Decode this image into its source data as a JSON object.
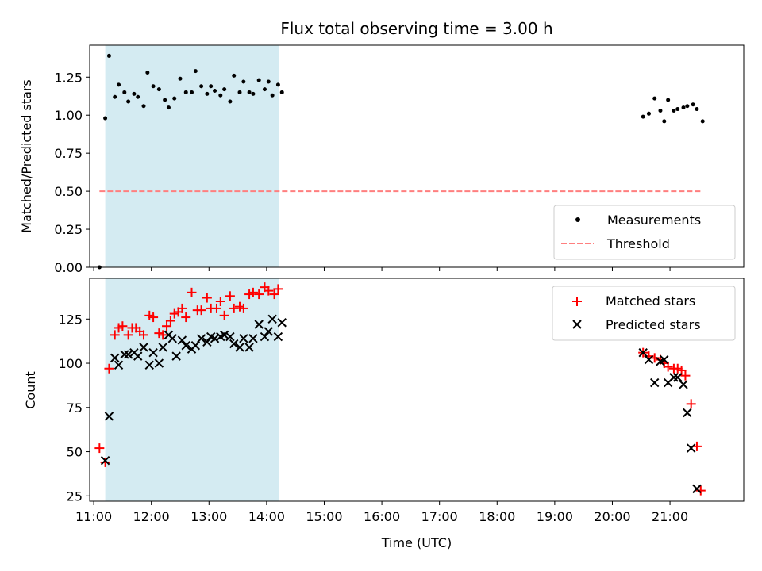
{
  "chart_data": {
    "type": "scatter",
    "title": "Flux total observing time = 3.00 h",
    "xlabel": "Time (UTC)",
    "x_ticks": [
      "11:00",
      "12:00",
      "13:00",
      "14:00",
      "15:00",
      "16:00",
      "17:00",
      "18:00",
      "19:00",
      "20:00",
      "21:00"
    ],
    "x_range_hours": [
      10.93,
      22.28
    ],
    "shaded_interval_hours": [
      11.2,
      14.22
    ],
    "shade_color": "#add8e6",
    "panels": [
      {
        "ylabel": "Matched/Predicted stars",
        "ylim": [
          0.0,
          1.46
        ],
        "y_ticks": [
          "0.00",
          "0.25",
          "0.50",
          "0.75",
          "1.00",
          "1.25"
        ],
        "y_tick_values": [
          0.0,
          0.25,
          0.5,
          0.75,
          1.0,
          1.25
        ],
        "legend_position": "bottom-right",
        "series": [
          {
            "name": "Measurements",
            "marker": "dot",
            "color": "#000000",
            "points": [
              [
                "11:06",
                0.0
              ],
              [
                "11:12",
                0.98
              ],
              [
                "11:16",
                1.39
              ],
              [
                "11:22",
                1.12
              ],
              [
                "11:26",
                1.2
              ],
              [
                "11:32",
                1.15
              ],
              [
                "11:36",
                1.09
              ],
              [
                "11:42",
                1.14
              ],
              [
                "11:46",
                1.12
              ],
              [
                "11:52",
                1.06
              ],
              [
                "11:56",
                1.28
              ],
              [
                "12:02",
                1.19
              ],
              [
                "12:08",
                1.17
              ],
              [
                "12:14",
                1.1
              ],
              [
                "12:18",
                1.05
              ],
              [
                "12:24",
                1.11
              ],
              [
                "12:30",
                1.24
              ],
              [
                "12:36",
                1.15
              ],
              [
                "12:42",
                1.15
              ],
              [
                "12:46",
                1.29
              ],
              [
                "12:52",
                1.19
              ],
              [
                "12:58",
                1.14
              ],
              [
                "13:02",
                1.19
              ],
              [
                "13:06",
                1.16
              ],
              [
                "13:12",
                1.13
              ],
              [
                "13:16",
                1.17
              ],
              [
                "13:22",
                1.09
              ],
              [
                "13:26",
                1.26
              ],
              [
                "13:32",
                1.15
              ],
              [
                "13:36",
                1.22
              ],
              [
                "13:42",
                1.15
              ],
              [
                "13:46",
                1.14
              ],
              [
                "13:52",
                1.23
              ],
              [
                "13:58",
                1.17
              ],
              [
                "14:02",
                1.22
              ],
              [
                "14:06",
                1.13
              ],
              [
                "14:12",
                1.2
              ],
              [
                "14:16",
                1.15
              ],
              [
                "20:32",
                0.99
              ],
              [
                "20:38",
                1.01
              ],
              [
                "20:44",
                1.11
              ],
              [
                "20:50",
                1.03
              ],
              [
                "20:54",
                0.96
              ],
              [
                "20:58",
                1.1
              ],
              [
                "21:04",
                1.03
              ],
              [
                "21:08",
                1.04
              ],
              [
                "21:14",
                1.05
              ],
              [
                "21:18",
                1.06
              ],
              [
                "21:24",
                1.07
              ],
              [
                "21:28",
                1.04
              ],
              [
                "21:34",
                0.96
              ]
            ]
          },
          {
            "name": "Threshold",
            "line_style": "dashed",
            "color": "#ff7f7f",
            "from": "11:06",
            "to": "21:34",
            "value": 0.5
          }
        ]
      },
      {
        "ylabel": "Count",
        "ylim": [
          22,
          148
        ],
        "y_ticks": [
          "25",
          "50",
          "75",
          "100",
          "125"
        ],
        "y_tick_values": [
          25,
          50,
          75,
          100,
          125
        ],
        "legend_position": "top-right",
        "series": [
          {
            "name": "Matched stars",
            "marker": "plus",
            "color": "#ff0000",
            "points": [
              [
                "11:06",
                52
              ],
              [
                "11:12",
                44
              ],
              [
                "11:16",
                97
              ],
              [
                "11:22",
                116
              ],
              [
                "11:26",
                120
              ],
              [
                "11:30",
                121
              ],
              [
                "11:36",
                116
              ],
              [
                "11:40",
                120
              ],
              [
                "11:44",
                120
              ],
              [
                "11:48",
                118
              ],
              [
                "11:52",
                116
              ],
              [
                "11:58",
                127
              ],
              [
                "12:02",
                126
              ],
              [
                "12:08",
                117
              ],
              [
                "12:12",
                116
              ],
              [
                "12:16",
                121
              ],
              [
                "12:20",
                124
              ],
              [
                "12:24",
                128
              ],
              [
                "12:28",
                129
              ],
              [
                "12:32",
                131
              ],
              [
                "12:36",
                126
              ],
              [
                "12:42",
                140
              ],
              [
                "12:48",
                130
              ],
              [
                "12:52",
                130
              ],
              [
                "12:58",
                137
              ],
              [
                "13:02",
                131
              ],
              [
                "13:08",
                131
              ],
              [
                "13:12",
                135
              ],
              [
                "13:16",
                127
              ],
              [
                "13:22",
                138
              ],
              [
                "13:26",
                131
              ],
              [
                "13:32",
                132
              ],
              [
                "13:36",
                131
              ],
              [
                "13:42",
                139
              ],
              [
                "13:46",
                140
              ],
              [
                "13:52",
                139
              ],
              [
                "13:58",
                143
              ],
              [
                "14:02",
                141
              ],
              [
                "14:08",
                139
              ],
              [
                "14:12",
                142
              ],
              [
                "20:32",
                106
              ],
              [
                "20:38",
                104
              ],
              [
                "20:44",
                103
              ],
              [
                "20:50",
                102
              ],
              [
                "20:54",
                100
              ],
              [
                "20:58",
                98
              ],
              [
                "21:04",
                97
              ],
              [
                "21:08",
                97
              ],
              [
                "21:12",
                96
              ],
              [
                "21:16",
                93
              ],
              [
                "21:22",
                77
              ],
              [
                "21:28",
                53
              ],
              [
                "21:32",
                28
              ]
            ]
          },
          {
            "name": "Predicted stars",
            "marker": "x",
            "color": "#000000",
            "points": [
              [
                "11:12",
                45
              ],
              [
                "11:16",
                70
              ],
              [
                "11:22",
                103
              ],
              [
                "11:26",
                99
              ],
              [
                "11:32",
                105
              ],
              [
                "11:36",
                105
              ],
              [
                "11:42",
                106
              ],
              [
                "11:46",
                104
              ],
              [
                "11:52",
                109
              ],
              [
                "11:58",
                99
              ],
              [
                "12:02",
                106
              ],
              [
                "12:08",
                100
              ],
              [
                "12:12",
                109
              ],
              [
                "12:18",
                116
              ],
              [
                "12:22",
                114
              ],
              [
                "12:26",
                104
              ],
              [
                "12:32",
                113
              ],
              [
                "12:36",
                110
              ],
              [
                "12:42",
                108
              ],
              [
                "12:46",
                110
              ],
              [
                "12:52",
                114
              ],
              [
                "12:58",
                112
              ],
              [
                "13:02",
                115
              ],
              [
                "13:06",
                114
              ],
              [
                "13:12",
                115
              ],
              [
                "13:16",
                116
              ],
              [
                "13:22",
                115
              ],
              [
                "13:26",
                111
              ],
              [
                "13:32",
                109
              ],
              [
                "13:36",
                114
              ],
              [
                "13:42",
                109
              ],
              [
                "13:46",
                114
              ],
              [
                "13:52",
                122
              ],
              [
                "13:58",
                115
              ],
              [
                "14:02",
                118
              ],
              [
                "14:06",
                125
              ],
              [
                "14:12",
                115
              ],
              [
                "14:16",
                123
              ],
              [
                "20:32",
                106
              ],
              [
                "20:38",
                102
              ],
              [
                "20:44",
                89
              ],
              [
                "20:50",
                101
              ],
              [
                "20:54",
                102
              ],
              [
                "20:58",
                89
              ],
              [
                "21:04",
                92
              ],
              [
                "21:08",
                92
              ],
              [
                "21:14",
                88
              ],
              [
                "21:18",
                72
              ],
              [
                "21:22",
                52
              ],
              [
                "21:28",
                29
              ]
            ]
          }
        ]
      }
    ]
  }
}
